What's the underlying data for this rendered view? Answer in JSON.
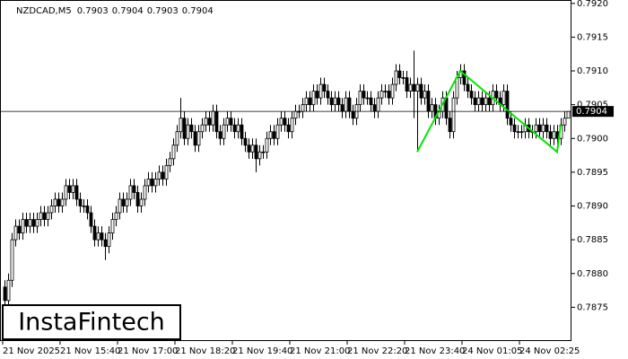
{
  "chart_data": {
    "type": "candlestick",
    "symbol": "NZDCAD,M5",
    "watermark": "InstaFintech",
    "categories": [
      "21 Nov 2025",
      null,
      null,
      null,
      null,
      null,
      null,
      null,
      null,
      null,
      null,
      null,
      null,
      null,
      null,
      null,
      "21 Nov 15:40",
      null,
      null,
      null,
      null,
      null,
      null,
      null,
      null,
      null,
      null,
      null,
      null,
      null,
      null,
      null,
      "21 Nov 17:00",
      null,
      null,
      null,
      null,
      null,
      null,
      null,
      null,
      null,
      null,
      null,
      null,
      null,
      null,
      null,
      "21 Nov 18:20",
      null,
      null,
      null,
      null,
      null,
      null,
      null,
      null,
      null,
      null,
      null,
      null,
      null,
      null,
      null,
      "21 Nov 19:40",
      null,
      null,
      null,
      null,
      null,
      null,
      null,
      null,
      null,
      null,
      null,
      null,
      null,
      null,
      null,
      "21 Nov 21:00",
      null,
      null,
      null,
      null,
      null,
      null,
      null,
      null,
      null,
      null,
      null,
      null,
      null,
      null,
      null,
      "21 Nov 22:20",
      null,
      null,
      null,
      null,
      null,
      null,
      null,
      null,
      null,
      null,
      null,
      null,
      null,
      null,
      null,
      "21 Nov 23:40",
      null,
      null,
      null,
      null,
      null,
      null,
      null,
      null,
      null,
      null,
      null,
      null,
      null,
      null,
      null,
      "24 Nov 01:05",
      null,
      null,
      null,
      null,
      null,
      null,
      null,
      null,
      null,
      null,
      null,
      null,
      null,
      null,
      null,
      "24 Nov 02:25",
      null,
      null,
      null,
      null,
      null,
      null,
      null,
      null,
      null,
      null,
      null,
      null,
      null
    ],
    "open": [
      0.7878,
      0.7876,
      0.7879,
      0.7885,
      0.7887,
      0.7886,
      0.7888,
      0.7887,
      0.7888,
      0.7887,
      0.7888,
      0.7889,
      0.7888,
      0.7889,
      0.789,
      0.7891,
      0.789,
      0.7891,
      0.7893,
      0.7892,
      0.7893,
      0.7891,
      0.789,
      0.789,
      0.7889,
      0.7887,
      0.7885,
      0.7886,
      0.7885,
      0.7884,
      0.7886,
      0.7888,
      0.7889,
      0.7891,
      0.789,
      0.7891,
      0.7893,
      0.7892,
      0.789,
      0.7891,
      0.7893,
      0.7894,
      0.7893,
      0.7894,
      0.7895,
      0.7894,
      0.7896,
      0.7897,
      0.7899,
      0.7901,
      0.7903,
      0.79,
      0.7902,
      0.7901,
      0.7899,
      0.7901,
      0.7902,
      0.7903,
      0.7902,
      0.7904,
      0.7901,
      0.79,
      0.7902,
      0.7903,
      0.7902,
      0.7901,
      0.7902,
      0.79,
      0.7899,
      0.7898,
      0.7899,
      0.7897,
      0.7898,
      0.7898,
      0.79,
      0.7901,
      0.79,
      0.7902,
      0.7903,
      0.7902,
      0.7901,
      0.7903,
      0.7904,
      0.7904,
      0.7905,
      0.7906,
      0.7905,
      0.7907,
      0.7906,
      0.7908,
      0.7907,
      0.7906,
      0.7905,
      0.7906,
      0.7905,
      0.7904,
      0.7906,
      0.7904,
      0.7903,
      0.7905,
      0.7907,
      0.7906,
      0.7906,
      0.7905,
      0.7904,
      0.7906,
      0.7907,
      0.7907,
      0.7906,
      0.7908,
      0.791,
      0.7909,
      0.7909,
      0.7907,
      0.7908,
      0.7907,
      0.7908,
      0.7906,
      0.7907,
      0.7904,
      0.7905,
      0.7903,
      0.7904,
      0.7906,
      0.7903,
      0.7901,
      0.7906,
      0.7909,
      0.791,
      0.7908,
      0.7907,
      0.7906,
      0.7905,
      0.7906,
      0.7905,
      0.7906,
      0.7905,
      0.7907,
      0.7906,
      0.7905,
      0.7907,
      0.7903,
      0.7902,
      0.7901,
      0.7901,
      0.7901,
      0.7902,
      0.7901,
      0.7901,
      0.7902,
      0.7901,
      0.7902,
      0.7901,
      0.79,
      0.7901,
      0.79,
      0.7902,
      0.7903
    ],
    "high": [
      0.7879,
      0.788,
      0.7886,
      0.7888,
      0.7888,
      0.7889,
      0.7889,
      0.7889,
      0.7889,
      0.7889,
      0.789,
      0.789,
      0.789,
      0.7891,
      0.7892,
      0.7892,
      0.7892,
      0.7894,
      0.7894,
      0.7894,
      0.7894,
      0.7892,
      0.7891,
      0.7891,
      0.789,
      0.7888,
      0.7887,
      0.7887,
      0.7886,
      0.7887,
      0.7889,
      0.789,
      0.7892,
      0.7892,
      0.7892,
      0.7894,
      0.7894,
      0.7893,
      0.7892,
      0.7894,
      0.7895,
      0.7895,
      0.7895,
      0.7896,
      0.7896,
      0.7897,
      0.7898,
      0.79,
      0.7902,
      0.7906,
      0.7904,
      0.7903,
      0.7903,
      0.7902,
      0.7902,
      0.7903,
      0.7904,
      0.7904,
      0.7905,
      0.7905,
      0.7902,
      0.7903,
      0.7904,
      0.7904,
      0.7903,
      0.7903,
      0.7903,
      0.7901,
      0.79,
      0.79,
      0.79,
      0.7899,
      0.7899,
      0.7901,
      0.7902,
      0.7902,
      0.7903,
      0.7904,
      0.7904,
      0.7903,
      0.7904,
      0.7905,
      0.7905,
      0.7906,
      0.7907,
      0.7907,
      0.7908,
      0.7908,
      0.7909,
      0.7909,
      0.7908,
      0.7907,
      0.7907,
      0.7907,
      0.7906,
      0.7907,
      0.7907,
      0.7905,
      0.7906,
      0.7908,
      0.7908,
      0.7907,
      0.7907,
      0.7906,
      0.7907,
      0.7908,
      0.7908,
      0.7908,
      0.7909,
      0.7911,
      0.7911,
      0.791,
      0.791,
      0.7909,
      0.7913,
      0.7909,
      0.7909,
      0.7908,
      0.7908,
      0.7906,
      0.7906,
      0.7905,
      0.7907,
      0.7907,
      0.7904,
      0.7907,
      0.791,
      0.7911,
      0.7911,
      0.7909,
      0.7908,
      0.7907,
      0.7907,
      0.7907,
      0.7907,
      0.7907,
      0.7908,
      0.7908,
      0.7907,
      0.7908,
      0.7908,
      0.7904,
      0.7903,
      0.7902,
      0.7902,
      0.7903,
      0.7903,
      0.7902,
      0.7903,
      0.7903,
      0.7903,
      0.7903,
      0.7902,
      0.7902,
      0.7902,
      0.7903,
      0.7904,
      0.7904
    ],
    "low": [
      0.7873,
      0.7875,
      0.7878,
      0.7884,
      0.7885,
      0.7885,
      0.7886,
      0.7886,
      0.7886,
      0.7886,
      0.7887,
      0.7887,
      0.7887,
      0.7888,
      0.7889,
      0.7889,
      0.7889,
      0.789,
      0.7891,
      0.7891,
      0.789,
      0.7889,
      0.7889,
      0.7888,
      0.7886,
      0.7884,
      0.7884,
      0.7884,
      0.7882,
      0.7883,
      0.7885,
      0.7887,
      0.7888,
      0.7889,
      0.7889,
      0.789,
      0.7891,
      0.7889,
      0.7889,
      0.789,
      0.7892,
      0.7892,
      0.7892,
      0.7893,
      0.7893,
      0.7893,
      0.7895,
      0.7896,
      0.7898,
      0.79,
      0.7899,
      0.7899,
      0.79,
      0.7898,
      0.7898,
      0.79,
      0.7901,
      0.7901,
      0.7901,
      0.79,
      0.7899,
      0.7899,
      0.7901,
      0.7901,
      0.79,
      0.79,
      0.7899,
      0.7898,
      0.7897,
      0.7897,
      0.7895,
      0.7896,
      0.7897,
      0.7897,
      0.7899,
      0.7899,
      0.7899,
      0.7901,
      0.7901,
      0.79,
      0.79,
      0.7902,
      0.7903,
      0.7903,
      0.7904,
      0.7904,
      0.7904,
      0.7905,
      0.7905,
      0.7906,
      0.7905,
      0.7904,
      0.7904,
      0.7904,
      0.7903,
      0.7903,
      0.7903,
      0.7902,
      0.7902,
      0.7904,
      0.7905,
      0.7905,
      0.7904,
      0.7903,
      0.7903,
      0.7905,
      0.7906,
      0.7905,
      0.7905,
      0.7907,
      0.7908,
      0.7908,
      0.7906,
      0.7906,
      0.7903,
      0.7898,
      0.7905,
      0.7905,
      0.7903,
      0.7903,
      0.7902,
      0.7902,
      0.7903,
      0.7902,
      0.79,
      0.79,
      0.7905,
      0.7908,
      0.7907,
      0.7906,
      0.7905,
      0.7904,
      0.7904,
      0.7904,
      0.7904,
      0.7904,
      0.7904,
      0.7905,
      0.7904,
      0.7904,
      0.7902,
      0.7901,
      0.79,
      0.79,
      0.79,
      0.79,
      0.79,
      0.79,
      0.79,
      0.79,
      0.79,
      0.79,
      0.7899,
      0.7899,
      0.7899,
      0.7899,
      0.7901,
      0.7903
    ],
    "close": [
      0.7876,
      0.7879,
      0.7885,
      0.7887,
      0.7886,
      0.7888,
      0.7887,
      0.7888,
      0.7887,
      0.7888,
      0.7889,
      0.7888,
      0.7889,
      0.789,
      0.7891,
      0.789,
      0.7891,
      0.7893,
      0.7892,
      0.7893,
      0.7891,
      0.789,
      0.789,
      0.7889,
      0.7887,
      0.7885,
      0.7886,
      0.7885,
      0.7884,
      0.7886,
      0.7888,
      0.7889,
      0.7891,
      0.789,
      0.7891,
      0.7893,
      0.7892,
      0.789,
      0.7891,
      0.7893,
      0.7894,
      0.7893,
      0.7894,
      0.7895,
      0.7894,
      0.7896,
      0.7897,
      0.7899,
      0.7901,
      0.7903,
      0.79,
      0.7902,
      0.7901,
      0.7899,
      0.7901,
      0.7902,
      0.7903,
      0.7902,
      0.7904,
      0.7901,
      0.79,
      0.7902,
      0.7903,
      0.7902,
      0.7901,
      0.7902,
      0.79,
      0.7899,
      0.7898,
      0.7899,
      0.7897,
      0.7898,
      0.7898,
      0.79,
      0.7901,
      0.79,
      0.7902,
      0.7903,
      0.7902,
      0.7901,
      0.7903,
      0.7904,
      0.7904,
      0.7905,
      0.7906,
      0.7905,
      0.7907,
      0.7906,
      0.7908,
      0.7907,
      0.7906,
      0.7905,
      0.7906,
      0.7905,
      0.7904,
      0.7906,
      0.7904,
      0.7903,
      0.7905,
      0.7907,
      0.7906,
      0.7906,
      0.7905,
      0.7904,
      0.7906,
      0.7907,
      0.7907,
      0.7906,
      0.7908,
      0.791,
      0.7909,
      0.7909,
      0.7907,
      0.7908,
      0.7907,
      0.7908,
      0.7906,
      0.7907,
      0.7904,
      0.7905,
      0.7903,
      0.7904,
      0.7906,
      0.7903,
      0.7901,
      0.7906,
      0.7909,
      0.791,
      0.7908,
      0.7907,
      0.7906,
      0.7905,
      0.7906,
      0.7905,
      0.7906,
      0.7905,
      0.7907,
      0.7906,
      0.7905,
      0.7907,
      0.7903,
      0.7902,
      0.7901,
      0.7901,
      0.7901,
      0.7902,
      0.7901,
      0.7901,
      0.7902,
      0.7901,
      0.7902,
      0.7901,
      0.79,
      0.7901,
      0.79,
      0.7902,
      0.7903,
      0.7904
    ],
    "pattern": {
      "color": "#00e600",
      "x": [
        115,
        127,
        154,
        155
      ],
      "values": [
        0.7898,
        0.791,
        0.7898,
        0.7902
      ]
    },
    "ylim": [
      0.787,
      0.79205
    ],
    "yticks": [
      0.7875,
      {
        "value": 0.788,
        "label": "0.7880"
      },
      0.7885,
      {
        "value": 0.789,
        "label": "0.7890"
      },
      0.7895,
      {
        "value": 0.79,
        "label": "0.7900"
      },
      0.7905,
      {
        "value": 0.791,
        "label": "0.7910"
      },
      0.7915,
      {
        "value": 0.792,
        "label": "0.7920"
      }
    ],
    "bull_color": "#ffffff",
    "bear_color": "#000000"
  }
}
